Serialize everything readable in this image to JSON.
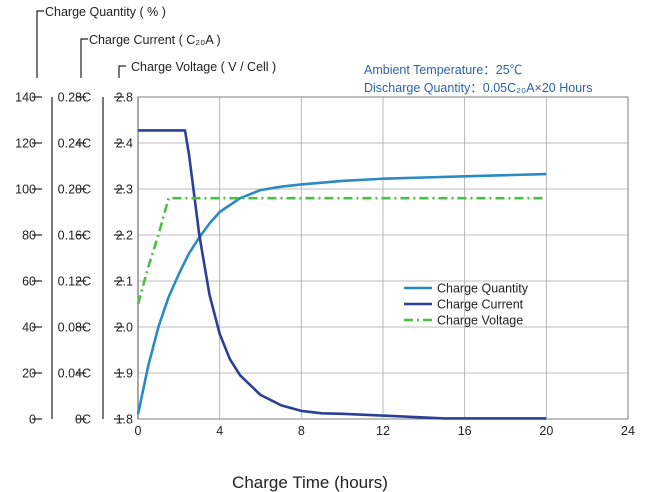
{
  "chart_data": {
    "type": "line",
    "xlabel": "Charge Time (hours)",
    "xlim": [
      0,
      24
    ],
    "xticks": [
      "0",
      "4",
      "8",
      "12",
      "16",
      "20",
      "24"
    ],
    "axes": [
      {
        "label": "Charge Quantity ( % )",
        "ylim": [
          0,
          140
        ],
        "ticks": [
          "0",
          "20",
          "40",
          "60",
          "80",
          "100",
          "120",
          "140"
        ]
      },
      {
        "label": "Charge Current ( C₂₀A )",
        "ylim": [
          0,
          0.28
        ],
        "ticks": [
          "0C",
          "0.04C",
          "0.08C",
          "0.12C",
          "0.16C",
          "0.20C",
          "0.24C",
          "0.28C"
        ]
      },
      {
        "label": "Charge Voltage ( V / Cell )",
        "ylim": [
          1.8,
          2.8
        ],
        "ticks": [
          "1.8",
          "1.9",
          "2.0",
          "2.1",
          "2.2",
          "2.3",
          "2.4",
          "2.8"
        ]
      }
    ],
    "annotations": [
      "Ambient Temperature：25℃",
      "Discharge Quantity：0.05C₂₀A×20 Hours"
    ],
    "grid": true,
    "legend_position": "center-right",
    "series": [
      {
        "name": "Charge Quantity",
        "axis": 0,
        "color": "#2a8ac4",
        "style": "solid",
        "x": [
          0,
          0.5,
          1,
          1.5,
          2,
          2.5,
          3,
          3.5,
          4,
          5,
          6,
          7,
          8,
          10,
          12,
          14,
          16,
          18,
          20
        ],
        "y": [
          2,
          23,
          40,
          53,
          63,
          72,
          79,
          85,
          90,
          96,
          99.5,
          101,
          102,
          103.5,
          104.5,
          105,
          105.5,
          106,
          106.5
        ]
      },
      {
        "name": "Charge Current",
        "axis": 1,
        "color": "#2b3f96",
        "style": "solid",
        "x": [
          0,
          2.3,
          2.5,
          3,
          3.5,
          4,
          4.5,
          5,
          6,
          7,
          8,
          9,
          10,
          12,
          15,
          20
        ],
        "y": [
          0.251,
          0.251,
          0.23,
          0.16,
          0.108,
          0.074,
          0.052,
          0.038,
          0.021,
          0.012,
          0.007,
          0.005,
          0.0045,
          0.003,
          0.0005,
          0.0005
        ]
      },
      {
        "name": "Charge Voltage",
        "axis": 2,
        "color": "#4cbd45",
        "style": "dashdot",
        "x": [
          0,
          0.5,
          1,
          1.5,
          20
        ],
        "y": [
          2.05,
          2.13,
          2.2,
          2.28,
          2.28
        ]
      }
    ]
  }
}
